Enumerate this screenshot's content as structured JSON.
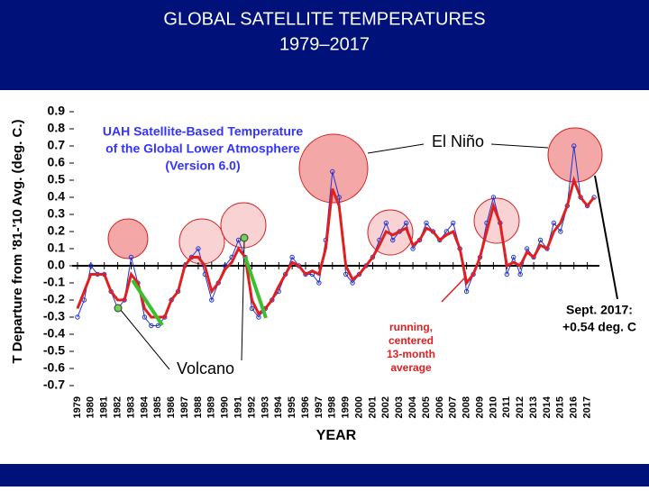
{
  "chart_data": {
    "type": "line",
    "title": "GLOBAL SATELLITE TEMPERATURES",
    "subtitle": "1979–2017",
    "y_label": "T Departure from '81-'10 Avg. (deg. C.)",
    "x_label": "YEAR",
    "annotations": [
      "UAH Satellite-Based Temperature",
      "of the Global Lower Atmosphere",
      "(Version 6.0)",
      "El Niño",
      "Volcano",
      "running,",
      "centered",
      "13-month",
      "average",
      "Sept. 2017:",
      "+0.54 deg. C"
    ],
    "x": [
      1979,
      1979.5,
      1980,
      1980.5,
      1981,
      1981.5,
      1982,
      1982.5,
      1983,
      1983.5,
      1984,
      1984.5,
      1985,
      1985.5,
      1986,
      1986.5,
      1987,
      1987.5,
      1988,
      1988.5,
      1989,
      1989.5,
      1990,
      1990.5,
      1991,
      1991.5,
      1992,
      1992.5,
      1993,
      1993.5,
      1994,
      1994.5,
      1995,
      1995.5,
      1996,
      1996.5,
      1997,
      1997.5,
      1998,
      1998.5,
      1999,
      1999.5,
      2000,
      2000.5,
      2001,
      2001.5,
      2002,
      2002.5,
      2003,
      2003.5,
      2004,
      2004.5,
      2005,
      2005.5,
      2006,
      2006.5,
      2007,
      2007.5,
      2008,
      2008.5,
      2009,
      2009.5,
      2010,
      2010.5,
      2011,
      2011.5,
      2012,
      2012.5,
      2013,
      2013.5,
      2014,
      2014.5,
      2015,
      2015.5,
      2016,
      2016.5,
      2017,
      2017.5
    ],
    "series": [
      {
        "color": "#2233cc",
        "values": [
          -0.3,
          -0.2,
          0.0,
          -0.05,
          -0.05,
          -0.15,
          -0.25,
          -0.2,
          0.05,
          -0.1,
          -0.3,
          -0.35,
          -0.35,
          -0.3,
          -0.2,
          -0.15,
          0.0,
          0.05,
          0.1,
          -0.05,
          -0.2,
          -0.1,
          0.0,
          0.05,
          0.15,
          0.05,
          -0.25,
          -0.3,
          -0.25,
          -0.2,
          -0.15,
          -0.05,
          0.05,
          0.0,
          -0.05,
          -0.05,
          -0.1,
          0.15,
          0.55,
          0.4,
          -0.05,
          -0.1,
          -0.05,
          0.0,
          0.05,
          0.15,
          0.25,
          0.15,
          0.2,
          0.25,
          0.1,
          0.15,
          0.25,
          0.2,
          0.15,
          0.2,
          0.25,
          0.1,
          -0.15,
          -0.05,
          0.05,
          0.25,
          0.4,
          0.25,
          -0.05,
          0.05,
          -0.05,
          0.1,
          0.05,
          0.15,
          0.1,
          0.25,
          0.2,
          0.35,
          0.7,
          0.4,
          0.35,
          0.4
        ]
      },
      {
        "color": "#e02020",
        "values": [
          -0.25,
          -0.15,
          -0.05,
          -0.05,
          -0.05,
          -0.15,
          -0.2,
          -0.2,
          -0.05,
          -0.1,
          -0.25,
          -0.3,
          -0.3,
          -0.3,
          -0.2,
          -0.15,
          0.0,
          0.05,
          0.05,
          0.0,
          -0.15,
          -0.1,
          -0.02,
          0.02,
          0.1,
          0.05,
          -0.2,
          -0.28,
          -0.25,
          -0.2,
          -0.12,
          -0.05,
          0.02,
          0.0,
          -0.05,
          -0.03,
          -0.05,
          0.1,
          0.45,
          0.35,
          0.0,
          -0.08,
          -0.05,
          0.0,
          0.05,
          0.12,
          0.2,
          0.18,
          0.2,
          0.22,
          0.12,
          0.15,
          0.22,
          0.2,
          0.15,
          0.18,
          0.2,
          0.1,
          -0.1,
          -0.05,
          0.05,
          0.2,
          0.35,
          0.25,
          0.0,
          0.02,
          0.0,
          0.08,
          0.05,
          0.12,
          0.1,
          0.2,
          0.25,
          0.35,
          0.5,
          0.4,
          0.35,
          0.4
        ]
      }
    ],
    "xlim": [
      1978.6,
      2017.9
    ],
    "xticks": [
      1979,
      1980,
      1981,
      1982,
      1983,
      1984,
      1985,
      1986,
      1987,
      1988,
      1989,
      1990,
      1991,
      1992,
      1993,
      1994,
      1995,
      1996,
      1997,
      1998,
      1999,
      2000,
      2001,
      2002,
      2003,
      2004,
      2005,
      2006,
      2007,
      2008,
      2009,
      2010,
      2011,
      2012,
      2013,
      2014,
      2015,
      2016,
      2017
    ],
    "ylim": [
      -0.7,
      0.9
    ],
    "yticks": [
      0.9,
      0.8,
      0.7,
      0.6,
      0.5,
      0.4,
      0.3,
      0.2,
      0.1,
      {
        "value": 0,
        "label": "0.0"
      },
      -0.1,
      -0.2,
      -0.3,
      -0.4,
      -0.5,
      -0.6,
      -0.7
    ]
  }
}
